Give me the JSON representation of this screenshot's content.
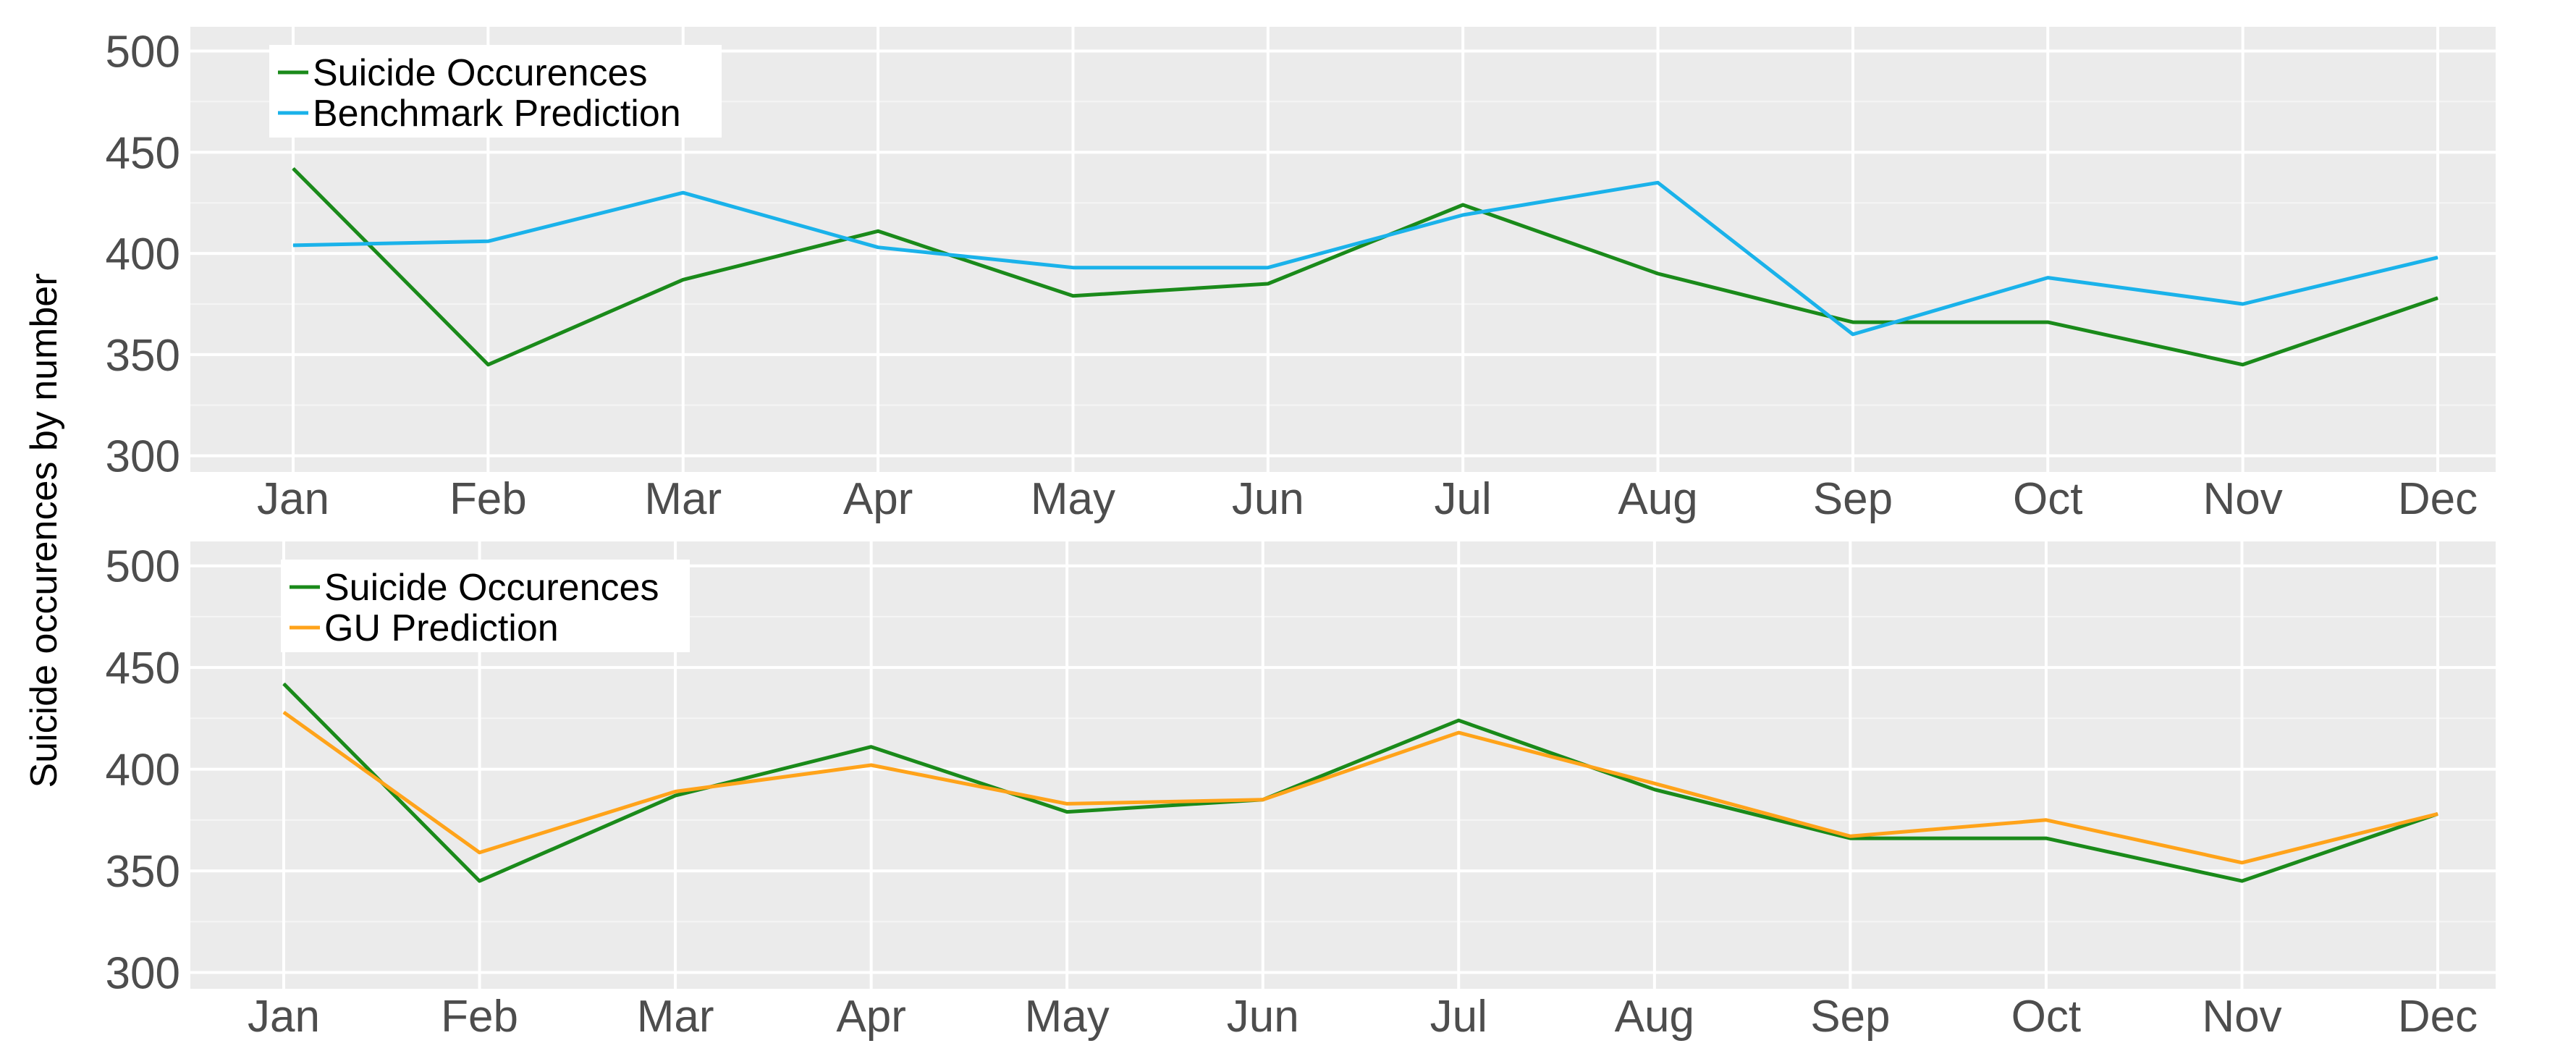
{
  "figure": {
    "ylabel": "Suicide occurences by number"
  },
  "chart_data": [
    {
      "type": "line",
      "title": "",
      "xlabel": "",
      "ylabel": "Suicide occurences by number",
      "categories": [
        "Jan",
        "Feb",
        "Mar",
        "Apr",
        "May",
        "Jun",
        "Jul",
        "Aug",
        "Sep",
        "Oct",
        "Nov",
        "Dec"
      ],
      "yticks": [
        "500",
        "450",
        "400",
        "350",
        "300"
      ],
      "ylim": [
        292,
        512
      ],
      "grid": true,
      "legend_position": "top-left",
      "series": [
        {
          "name": "Suicide Occurences",
          "color": "#1a8a1a",
          "values": [
            442,
            345,
            387,
            411,
            379,
            385,
            424,
            390,
            366,
            366,
            345,
            378
          ]
        },
        {
          "name": "Benchmark Prediction",
          "color": "#1ab2ea",
          "values": [
            404,
            406,
            430,
            403,
            393,
            393,
            419,
            435,
            360,
            388,
            375,
            398
          ]
        }
      ]
    },
    {
      "type": "line",
      "title": "",
      "xlabel": "",
      "ylabel": "Suicide occurences by number",
      "categories": [
        "Jan",
        "Feb",
        "Mar",
        "Apr",
        "May",
        "Jun",
        "Jul",
        "Aug",
        "Sep",
        "Oct",
        "Nov",
        "Dec"
      ],
      "yticks": [
        "500",
        "450",
        "400",
        "350",
        "300"
      ],
      "ylim": [
        292,
        512
      ],
      "grid": true,
      "legend_position": "top-left",
      "series": [
        {
          "name": "Suicide Occurences",
          "color": "#1a8a1a",
          "values": [
            442,
            345,
            387,
            411,
            379,
            385,
            424,
            390,
            366,
            366,
            345,
            378
          ]
        },
        {
          "name": "GU Prediction",
          "color": "#ffa31a",
          "values": [
            428,
            359,
            389,
            402,
            383,
            385,
            418,
            393,
            367,
            375,
            354,
            378
          ]
        }
      ]
    }
  ]
}
